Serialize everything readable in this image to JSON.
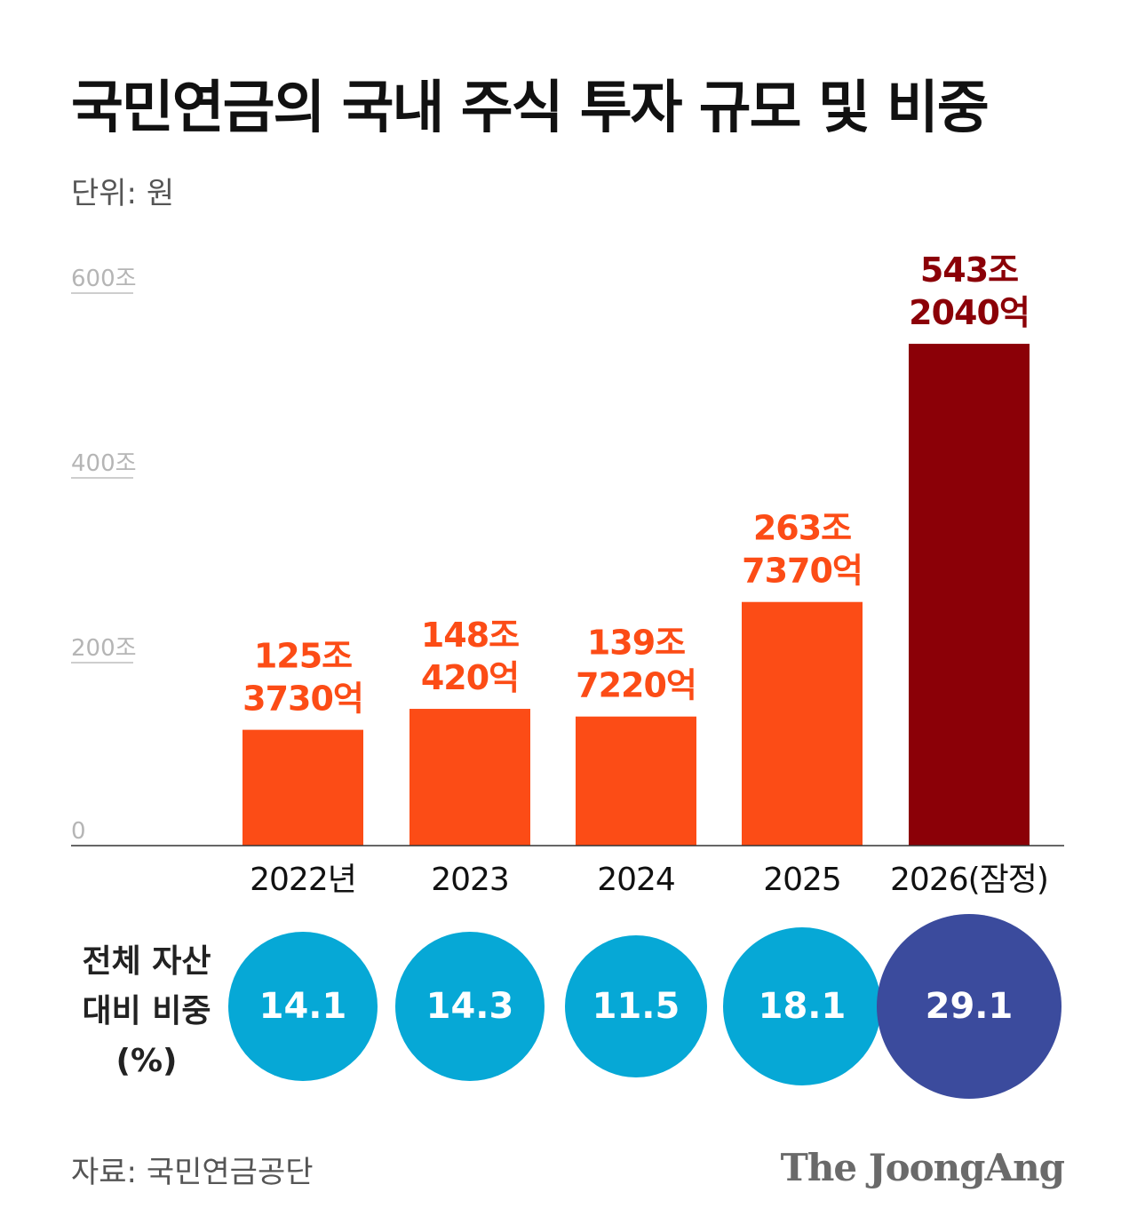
{
  "header": {
    "title": "국민연금의 국내 주식 투자 규모 및 비중",
    "unit": "단위: 원"
  },
  "colors": {
    "bar": "#fc4c16",
    "bar_highlight": "#8b0007",
    "bubble": "#06a8d6",
    "bubble_highlight": "#3b4b9d",
    "gridline": "#bdbdbd",
    "axis_label": "#b5b5b5"
  },
  "chart_data": {
    "type": "bar",
    "categories": [
      "2022년",
      "2023",
      "2024",
      "2025",
      "2026(잠정)"
    ],
    "values": [
      125.373,
      148.042,
      139.722,
      263.737,
      543.204
    ],
    "data_labels": [
      [
        "125조",
        "3730억"
      ],
      [
        "148조",
        "420억"
      ],
      [
        "139조",
        "7220억"
      ],
      [
        "263조",
        "7370억"
      ],
      [
        "543조",
        "2040억"
      ]
    ],
    "yticks": [
      0,
      200,
      400,
      600
    ],
    "ytick_labels": [
      "0",
      "200조",
      "400조",
      "600조"
    ],
    "ylim": [
      0,
      600
    ],
    "highlight_index": 4,
    "unit": "조 원",
    "share": {
      "label_lines": [
        "전체 자산",
        "대비 비중",
        "(%)"
      ],
      "values": [
        14.1,
        14.3,
        11.5,
        18.1,
        29.1
      ]
    }
  },
  "footer": {
    "source": "자료: 국민연금공단",
    "logo": "The JoongAng"
  }
}
